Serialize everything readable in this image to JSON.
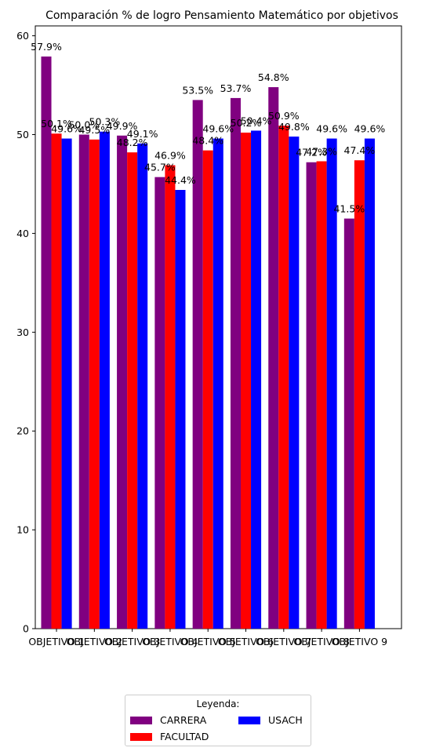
{
  "chart_data": {
    "type": "bar",
    "title": "Comparación % de logro Pensamiento Matemático por objetivos",
    "categories": [
      "OBJETIVO 1",
      "OBJETIVO 2",
      "OBJETIVO 3",
      "OBJETIVO 4",
      "OBJETIVO 5",
      "OBJETIVO 6",
      "OBJETIVO 7",
      "OBJETIVO 8",
      "OBJETIVO 9"
    ],
    "series": [
      {
        "name": "CARRERA",
        "color": "#800080",
        "values": [
          57.9,
          50.0,
          49.9,
          45.7,
          53.5,
          53.7,
          54.8,
          47.2,
          41.5
        ]
      },
      {
        "name": "FACULTAD",
        "color": "#ff0000",
        "values": [
          50.1,
          49.5,
          48.2,
          46.9,
          48.4,
          50.2,
          50.9,
          47.3,
          47.4
        ]
      },
      {
        "name": "USACH",
        "color": "#0000ff",
        "values": [
          49.6,
          50.3,
          49.1,
          44.4,
          49.6,
          50.4,
          49.8,
          49.6,
          49.6
        ]
      }
    ],
    "data_labels": [
      [
        "57.9%",
        "50.0%",
        "49.9%",
        "45.7%",
        "53.5%",
        "53.7%",
        "54.8%",
        "47.2%",
        "41.5%"
      ],
      [
        "50.1%",
        "49.5%",
        "48.2%",
        "46.9%",
        "48.4%",
        "50.2%",
        "50.9%",
        "47.3%",
        "47.4%"
      ],
      [
        "49.6%",
        "50.3%",
        "49.1%",
        "44.4%",
        "49.6%",
        "50.4%",
        "49.8%",
        "49.6%",
        "49.6%"
      ]
    ],
    "yticks": [
      0,
      10,
      20,
      30,
      40,
      50,
      60
    ],
    "ylim": [
      0,
      61
    ],
    "legend": {
      "title": "Leyenda:",
      "placement": "bottom-center",
      "columns": 2
    },
    "grid": false
  }
}
